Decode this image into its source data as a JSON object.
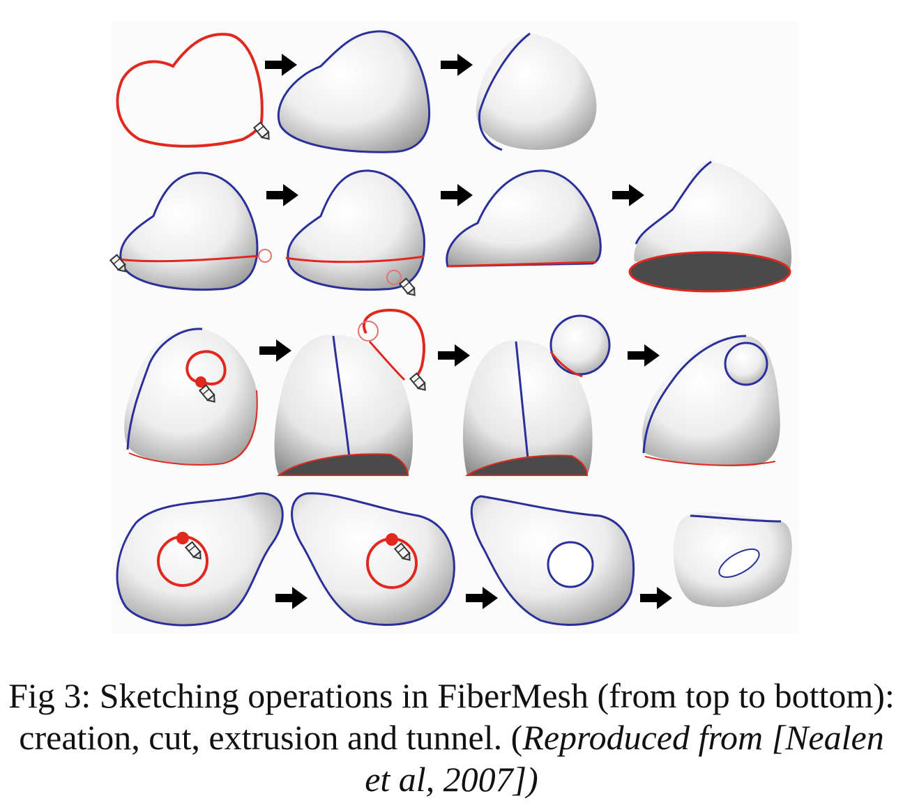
{
  "figure": {
    "rows": [
      {
        "name": "creation",
        "steps": 3
      },
      {
        "name": "cut",
        "steps": 4
      },
      {
        "name": "extrusion",
        "steps": 4
      },
      {
        "name": "tunnel",
        "steps": 4
      }
    ],
    "colors": {
      "stroke": "#e0281e",
      "silhouette": "#2a2f9a",
      "arrow": "#000000",
      "shade_light": "#ffffff",
      "shade_dark": "#9a9a9a",
      "cut_face": "#4a4a4a",
      "background": "#fafafa"
    },
    "icons": [
      "pencil-cursor-icon",
      "arrow-right-icon"
    ]
  },
  "caption": {
    "line1": "Fig 3: Sketching operations in FiberMesh (from top to bottom):",
    "line2_prefix": "creation, cut, extrusion and tunnel. (",
    "line2_italic": "Reproduced from [Nealen",
    "line3": "et al, 2007])"
  }
}
